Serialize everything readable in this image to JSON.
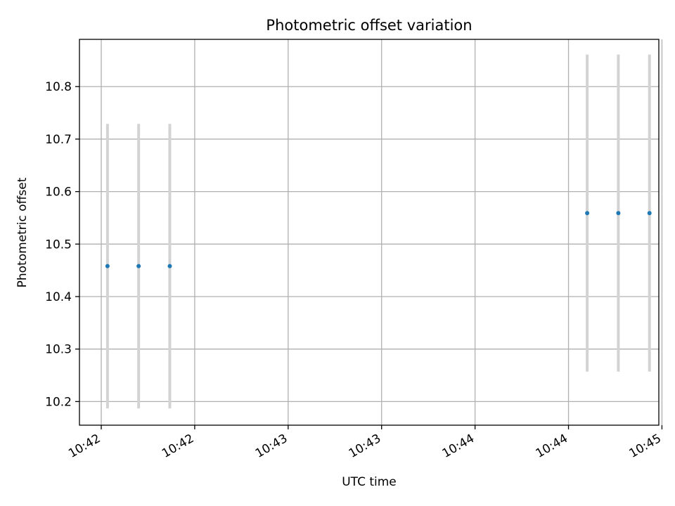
{
  "chart_data": {
    "type": "scatter",
    "title": "Photometric offset variation",
    "xlabel": "UTC time",
    "ylabel": "Photometric offset",
    "x_unit": "UTC time (seconds, mm:ss after 10:00)",
    "xlim": [
      "10:41:47",
      "10:44:53"
    ],
    "ylim": [
      10.155,
      10.89
    ],
    "grid": true,
    "colors": {
      "marker": "#1f77b4",
      "errorbar": "#d3d3d3",
      "grid": "#b0b0b0"
    },
    "x_ticks": [
      {
        "t": "10:41:54",
        "label": "10:42"
      },
      {
        "t": "10:42:24",
        "label": "10:42"
      },
      {
        "t": "10:42:54",
        "label": "10:43"
      },
      {
        "t": "10:43:24",
        "label": "10:43"
      },
      {
        "t": "10:43:54",
        "label": "10:44"
      },
      {
        "t": "10:44:24",
        "label": "10:44"
      },
      {
        "t": "10:44:54",
        "label": "10:45"
      }
    ],
    "y_ticks": [
      10.2,
      10.3,
      10.4,
      10.5,
      10.6,
      10.7,
      10.8
    ],
    "points": [
      {
        "t": "10:41:56",
        "y": 10.458,
        "err": 0.271
      },
      {
        "t": "10:42:06",
        "y": 10.458,
        "err": 0.271
      },
      {
        "t": "10:42:16",
        "y": 10.458,
        "err": 0.271
      },
      {
        "t": "10:44:30",
        "y": 10.559,
        "err": 0.302
      },
      {
        "t": "10:44:40",
        "y": 10.559,
        "err": 0.302
      },
      {
        "t": "10:44:50",
        "y": 10.559,
        "err": 0.302
      }
    ]
  }
}
